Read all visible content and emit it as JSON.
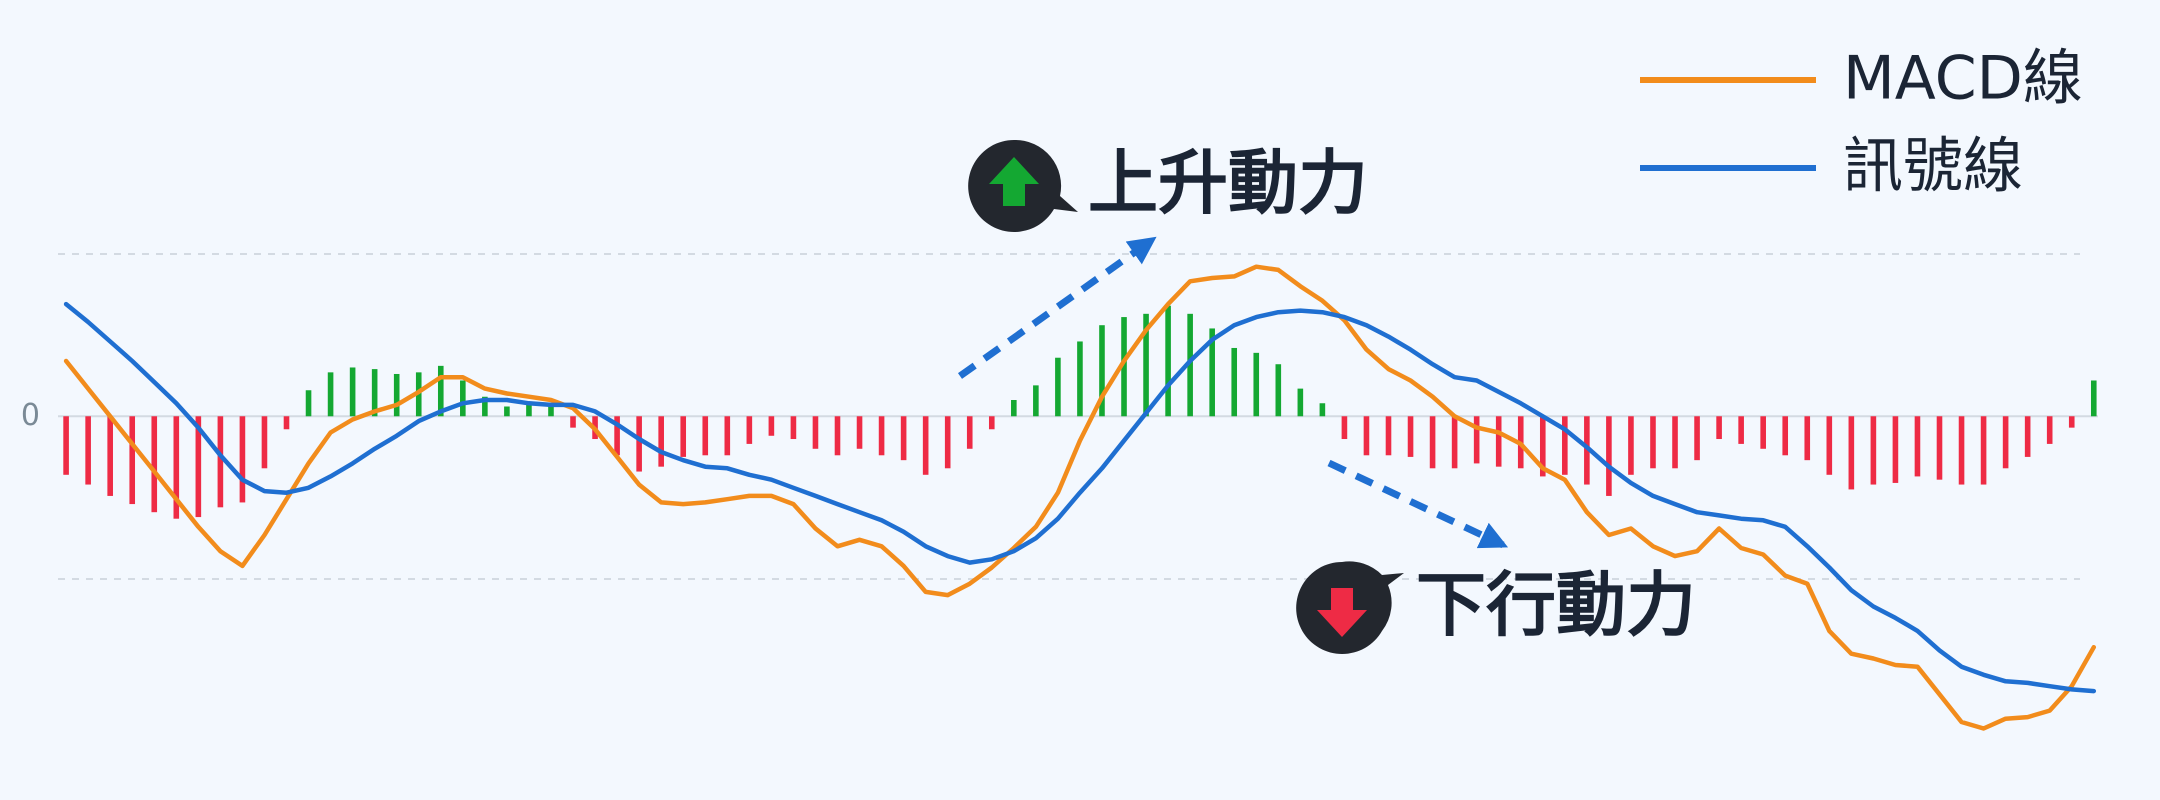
{
  "chart_data": {
    "type": "macd",
    "ylim": [
      -2.36,
      2.56
    ],
    "yticks": [
      0
    ],
    "grid": true,
    "legend": "top-right",
    "series": [
      {
        "name": "MACD線",
        "color": "#f28c1c",
        "values": [
          0.34,
          0.17,
          0,
          -0.17,
          -0.34,
          -0.51,
          -0.68,
          -0.83,
          -0.92,
          -0.73,
          -0.51,
          -0.29,
          -0.1,
          -0.02,
          0.03,
          0.07,
          0.15,
          0.24,
          0.24,
          0.17,
          0.14,
          0.12,
          0.1,
          0.05,
          -0.08,
          -0.25,
          -0.42,
          -0.53,
          -0.54,
          -0.53,
          -0.51,
          -0.49,
          -0.49,
          -0.54,
          -0.69,
          -0.8,
          -0.76,
          -0.8,
          -0.92,
          -1.08,
          -1.1,
          -1.03,
          -0.93,
          -0.81,
          -0.68,
          -0.47,
          -0.15,
          0.12,
          0.34,
          0.53,
          0.69,
          0.83,
          0.85,
          0.86,
          0.92,
          0.9,
          0.8,
          0.71,
          0.59,
          0.41,
          0.29,
          0.22,
          0.12,
          0,
          -0.07,
          -0.1,
          -0.17,
          -0.32,
          -0.39,
          -0.59,
          -0.73,
          -0.69,
          -0.8,
          -0.86,
          -0.83,
          -0.69,
          -0.81,
          -0.85,
          -0.98,
          -1.03,
          -1.32,
          -1.46,
          -1.49,
          -1.53,
          -1.54,
          -1.71,
          -1.88,
          -1.92,
          -1.86,
          -1.85,
          -1.81,
          -1.66,
          -1.42
        ]
      },
      {
        "name": "訊號線",
        "color": "#1f6fd1",
        "values": [
          0.69,
          0.58,
          0.46,
          0.34,
          0.21,
          0.08,
          -0.07,
          -0.24,
          -0.39,
          -0.46,
          -0.47,
          -0.44,
          -0.37,
          -0.29,
          -0.2,
          -0.12,
          -0.03,
          0.03,
          0.08,
          0.1,
          0.1,
          0.08,
          0.07,
          0.07,
          0.03,
          -0.05,
          -0.14,
          -0.22,
          -0.27,
          -0.31,
          -0.32,
          -0.36,
          -0.39,
          -0.44,
          -0.49,
          -0.54,
          -0.59,
          -0.64,
          -0.71,
          -0.8,
          -0.86,
          -0.9,
          -0.88,
          -0.83,
          -0.75,
          -0.63,
          -0.47,
          -0.32,
          -0.15,
          0.02,
          0.19,
          0.34,
          0.47,
          0.56,
          0.61,
          0.64,
          0.65,
          0.64,
          0.61,
          0.56,
          0.49,
          0.41,
          0.32,
          0.24,
          0.22,
          0.15,
          0.08,
          0,
          -0.08,
          -0.19,
          -0.31,
          -0.41,
          -0.49,
          -0.54,
          -0.59,
          -0.61,
          -0.63,
          -0.64,
          -0.68,
          -0.8,
          -0.93,
          -1.07,
          -1.17,
          -1.24,
          -1.32,
          -1.44,
          -1.54,
          -1.59,
          -1.63,
          -1.64,
          -1.66,
          -1.68,
          -1.69
        ]
      }
    ],
    "histogram": {
      "up_color": "#14a832",
      "down_color": "#ee2b45",
      "values": [
        -0.36,
        -0.42,
        -0.49,
        -0.54,
        -0.59,
        -0.63,
        -0.62,
        -0.56,
        -0.53,
        -0.32,
        -0.08,
        0.16,
        0.27,
        0.3,
        0.29,
        0.26,
        0.27,
        0.31,
        0.22,
        0.12,
        0.06,
        0.08,
        0.07,
        -0.07,
        -0.14,
        -0.24,
        -0.34,
        -0.31,
        -0.25,
        -0.24,
        -0.24,
        -0.17,
        -0.12,
        -0.14,
        -0.2,
        -0.24,
        -0.2,
        -0.24,
        -0.27,
        -0.36,
        -0.32,
        -0.2,
        -0.08,
        0.1,
        0.19,
        0.36,
        0.46,
        0.56,
        0.61,
        0.63,
        0.68,
        0.63,
        0.54,
        0.42,
        0.39,
        0.32,
        0.17,
        0.08,
        -0.14,
        -0.24,
        -0.24,
        -0.25,
        -0.32,
        -0.32,
        -0.29,
        -0.31,
        -0.32,
        -0.37,
        -0.36,
        -0.42,
        -0.49,
        -0.36,
        -0.32,
        -0.32,
        -0.27,
        -0.14,
        -0.17,
        -0.2,
        -0.24,
        -0.27,
        -0.36,
        -0.45,
        -0.42,
        -0.41,
        -0.37,
        -0.39,
        -0.42,
        -0.42,
        -0.32,
        -0.25,
        -0.17,
        -0.07,
        0.22
      ]
    },
    "annotations": [
      {
        "text": "上升動力",
        "direction": "up"
      },
      {
        "text": "下行動力",
        "direction": "down"
      }
    ]
  }
}
